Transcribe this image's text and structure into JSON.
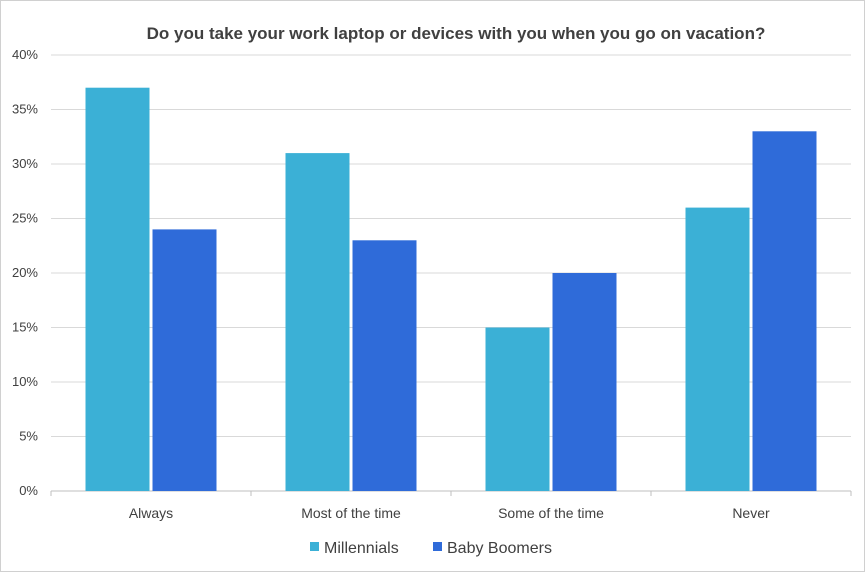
{
  "chart_data": {
    "type": "bar",
    "title": "Do you take your work laptop or devices with you when you go on vacation?",
    "categories": [
      "Always",
      "Most of the time",
      "Some of the time",
      "Never"
    ],
    "series": [
      {
        "name": "Millennials",
        "color": "#3bb0d6",
        "values": [
          37,
          31,
          15,
          26
        ]
      },
      {
        "name": "Baby Boomers",
        "color": "#2f6bd9",
        "values": [
          24,
          23,
          20,
          33
        ]
      }
    ],
    "ylim": [
      0,
      40
    ],
    "yticks": [
      "0%",
      "5%",
      "10%",
      "15%",
      "20%",
      "25%",
      "30%",
      "35%",
      "40%"
    ],
    "grid": true,
    "legend_position": "bottom"
  }
}
